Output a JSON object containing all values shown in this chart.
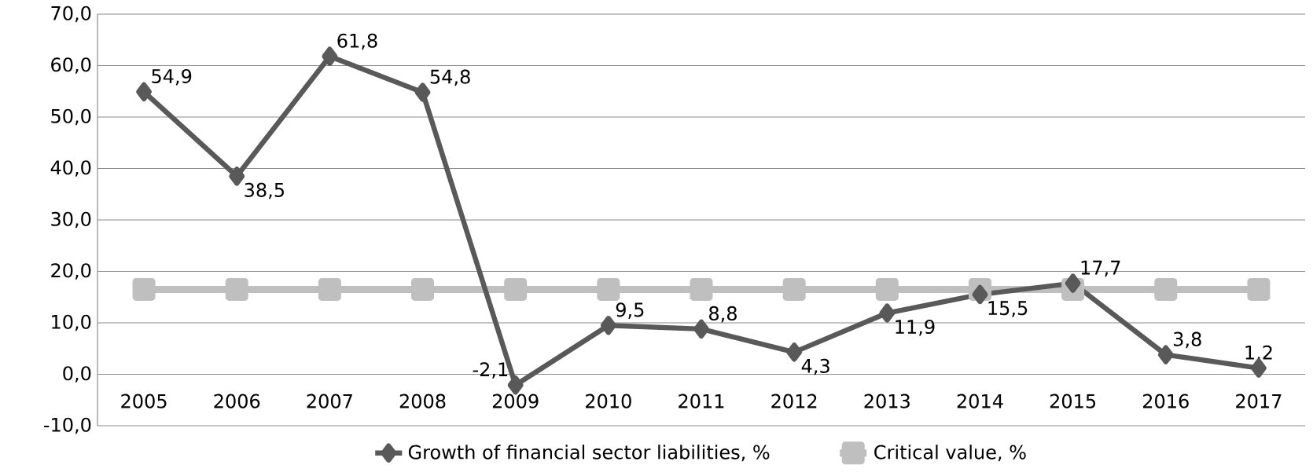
{
  "chart_data": {
    "type": "line",
    "categories": [
      "2005",
      "2006",
      "2007",
      "2008",
      "2009",
      "2010",
      "2011",
      "2012",
      "2013",
      "2014",
      "2015",
      "2016",
      "2017"
    ],
    "series": [
      {
        "name": "Growth of financial sector liabilities, %",
        "color": "#595959",
        "marker": "diamond",
        "values": [
          54.9,
          38.5,
          61.8,
          54.8,
          -2.1,
          9.5,
          8.8,
          4.3,
          11.9,
          15.5,
          17.7,
          3.8,
          1.2
        ],
        "value_labels": [
          "54,9",
          "38,5",
          "61,8",
          "54,8",
          "-2,1",
          "9,5",
          "8,8",
          "4,3",
          "11,9",
          "15,5",
          "17,7",
          "3,8",
          "1,2"
        ]
      },
      {
        "name": "Critical value, %",
        "color": "#bfbfbf",
        "marker": "square",
        "values": [
          16.5,
          16.5,
          16.5,
          16.5,
          16.5,
          16.5,
          16.5,
          16.5,
          16.5,
          16.5,
          16.5,
          16.5,
          16.5
        ]
      }
    ],
    "ylim": [
      -10,
      70
    ],
    "yticks": [
      {
        "value": -10,
        "label": "-10,0"
      },
      {
        "value": 0,
        "label": "0,0"
      },
      {
        "value": 10,
        "label": "10,0"
      },
      {
        "value": 20,
        "label": "20,0"
      },
      {
        "value": 30,
        "label": "30,0"
      },
      {
        "value": 40,
        "label": "40,0"
      },
      {
        "value": 50,
        "label": "50,0"
      },
      {
        "value": 60,
        "label": "60,0"
      },
      {
        "value": 70,
        "label": "70,0"
      }
    ],
    "grid": "y",
    "legend": "bottom",
    "line_style": "solid"
  }
}
